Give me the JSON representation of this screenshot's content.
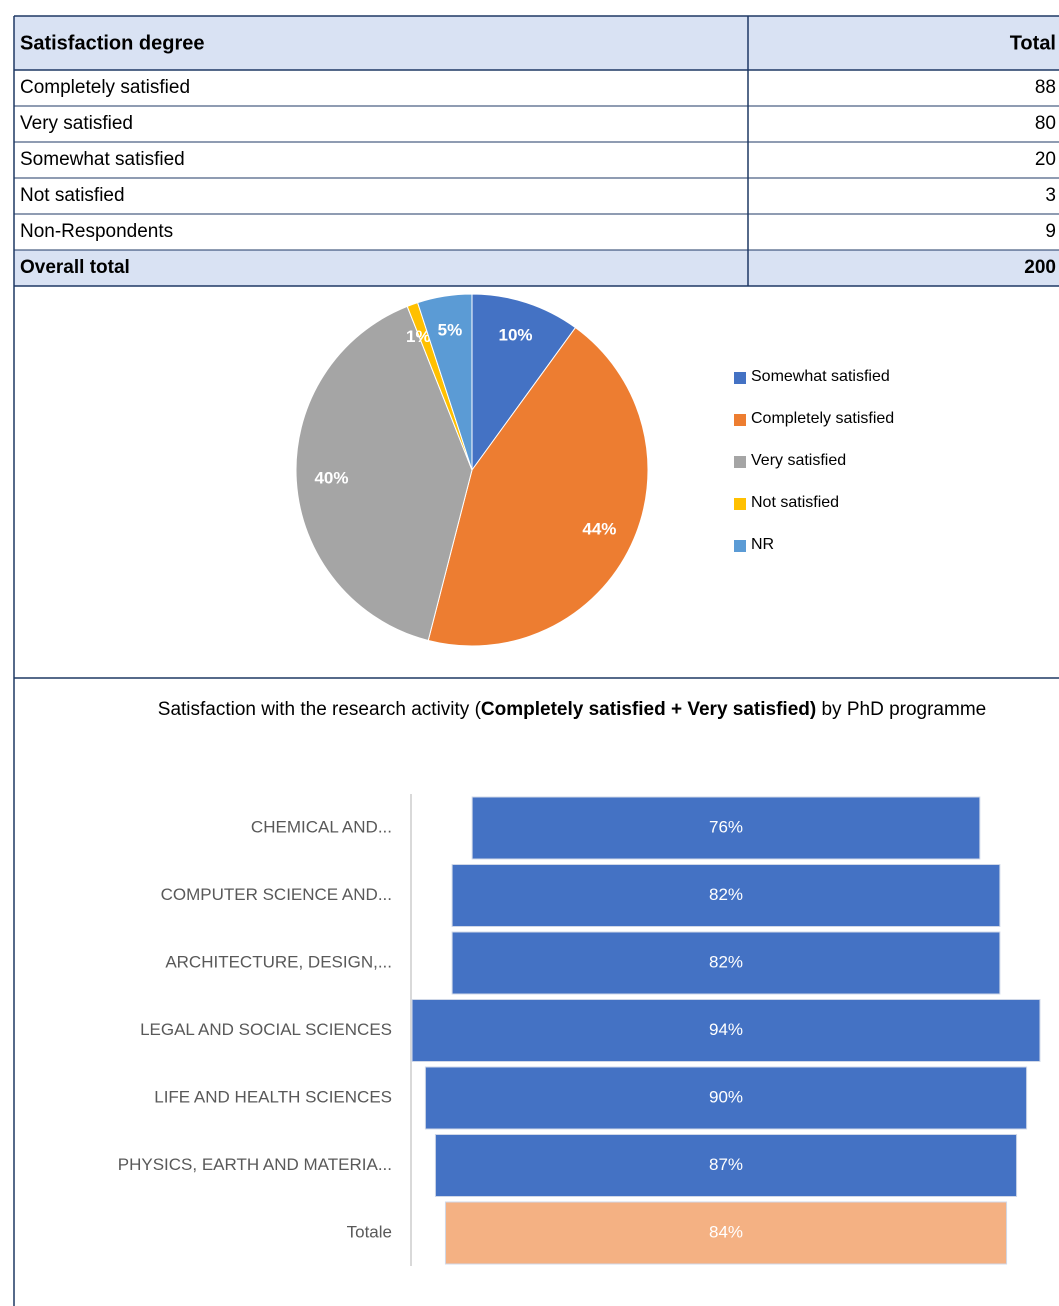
{
  "table": {
    "header": [
      "Satisfaction degree",
      "Total"
    ],
    "rows": [
      [
        "Completely satisfied",
        "88"
      ],
      [
        "Very satisfied",
        "80"
      ],
      [
        "Somewhat satisfied",
        "20"
      ],
      [
        "Not satisfied",
        "3"
      ],
      [
        "Non-Respondents",
        "9"
      ]
    ],
    "total": [
      "Overall total",
      "200"
    ]
  },
  "chart_data": [
    {
      "type": "pie",
      "categories": [
        "Somewhat satisfied",
        "Completely satisfied",
        "Very satisfied",
        "Not satisfied",
        "NR"
      ],
      "values": [
        10,
        44,
        40,
        1,
        5
      ],
      "value_labels": [
        "10%",
        "44%",
        "40%",
        "1%",
        "5%"
      ],
      "colors": [
        "#4472c4",
        "#ed7d31",
        "#a5a5a5",
        "#ffc000",
        "#5b9bd5"
      ]
    },
    {
      "type": "bar",
      "title": [
        "Satisfaction with the research activity (",
        "Completely satisfied + Very satisfied)",
        " by PhD programme"
      ],
      "categories": [
        "CHEMICAL AND...",
        "COMPUTER SCIENCE AND...",
        "ARCHITECTURE, DESIGN,...",
        "LEGAL AND SOCIAL SCIENCES",
        "LIFE AND HEALTH SCIENCES",
        "PHYSICS, EARTH AND MATERIA...",
        "Totale"
      ],
      "values": [
        76,
        82,
        82,
        94,
        90,
        87,
        84
      ],
      "value_labels": [
        "76%",
        "82%",
        "82%",
        "94%",
        "90%",
        "87%",
        "84%"
      ],
      "colors": [
        "#4472c4",
        "#4472c4",
        "#4472c4",
        "#4472c4",
        "#4472c4",
        "#4472c4",
        "#f4b183"
      ]
    }
  ]
}
